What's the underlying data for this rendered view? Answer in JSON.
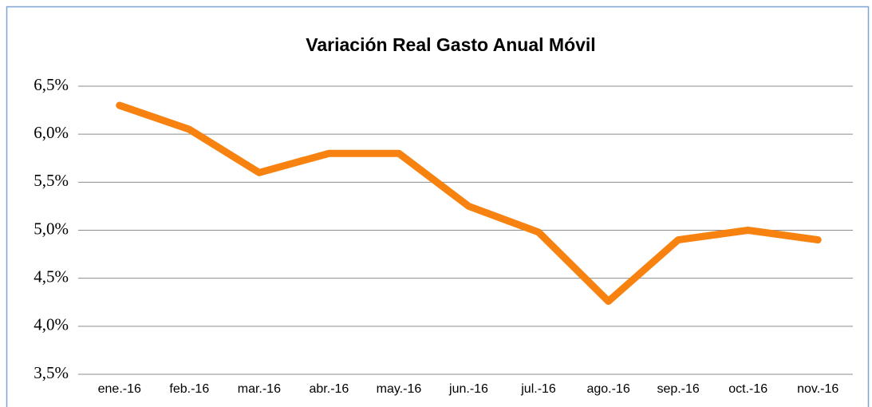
{
  "chart_data": {
    "type": "line",
    "title": "Variación Real Gasto Anual Móvil",
    "categories": [
      "ene.-16",
      "feb.-16",
      "mar.-16",
      "abr.-16",
      "may.-16",
      "jun.-16",
      "jul.-16",
      "ago.-16",
      "sep.-16",
      "oct.-16",
      "nov.-16"
    ],
    "values": [
      6.3,
      6.05,
      5.6,
      5.8,
      5.8,
      5.25,
      4.98,
      4.26,
      4.9,
      5.0,
      4.9
    ],
    "color": "#f7820f",
    "ylim": [
      3.5,
      6.5
    ],
    "yticks": [
      {
        "value": 3.5,
        "label": "3,5%"
      },
      {
        "value": 4.0,
        "label": "4,0%"
      },
      {
        "value": 4.5,
        "label": "4,5%"
      },
      {
        "value": 5.0,
        "label": "5,0%"
      },
      {
        "value": 5.5,
        "label": "5,5%"
      },
      {
        "value": 6.0,
        "label": "6,0%"
      },
      {
        "value": 6.5,
        "label": "6,5%"
      }
    ],
    "grid": true
  }
}
